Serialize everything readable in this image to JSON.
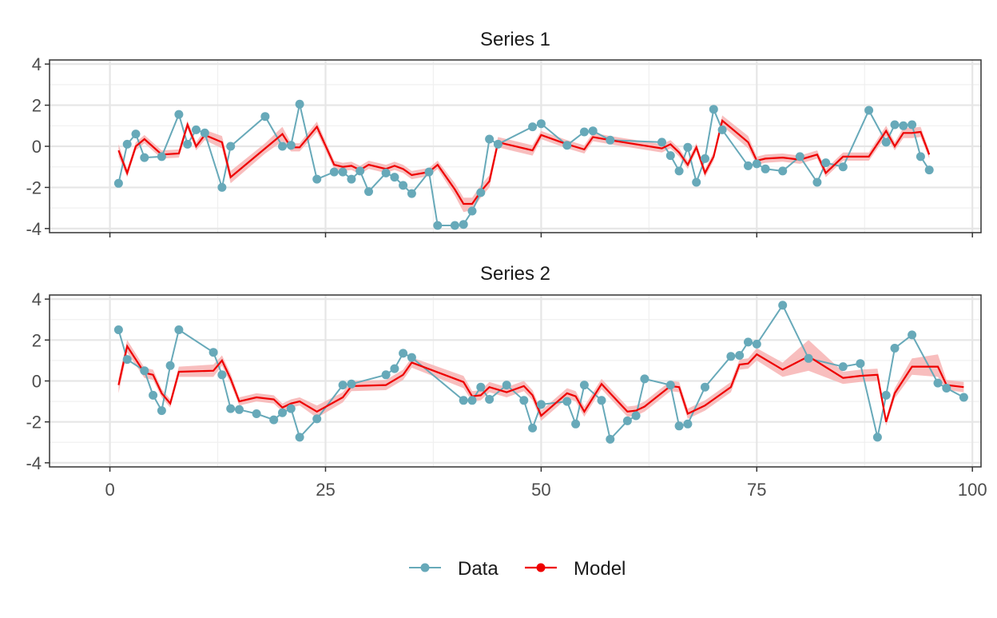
{
  "colors": {
    "data": "#67a9b9",
    "model": "#ee0000",
    "band": "#f7b3b3",
    "grid_major": "#e6e6e6",
    "grid_minor": "#f0f0f0",
    "panel_border": "#333333"
  },
  "chart_data": {
    "type": "line",
    "x_range": [
      -7,
      101
    ],
    "x_ticks": [
      0,
      25,
      50,
      75,
      100
    ],
    "x_tick_labels": [
      "0",
      "25",
      "50",
      "75",
      "100"
    ],
    "y_range": [
      -4.2,
      4.2
    ],
    "y_ticks": [
      -4,
      -2,
      0,
      2,
      4
    ],
    "y_tick_labels": [
      "-4",
      "-2",
      "0",
      "2",
      "4"
    ],
    "grid": true,
    "legend_position": "bottom",
    "legend": [
      "Data",
      "Model"
    ],
    "panels": [
      {
        "title": "Series 1",
        "data": [
          [
            1,
            -1.8
          ],
          [
            2,
            0.1
          ],
          [
            3,
            0.6
          ],
          [
            4,
            -0.55
          ],
          [
            6,
            -0.5
          ],
          [
            8,
            1.55
          ],
          [
            9,
            0.1
          ],
          [
            10,
            0.8
          ],
          [
            11,
            0.65
          ],
          [
            13,
            -2.0
          ],
          [
            14,
            0.0
          ],
          [
            18,
            1.45
          ],
          [
            20,
            0.0
          ],
          [
            21,
            0.05
          ],
          [
            22,
            2.05
          ],
          [
            24,
            -1.6
          ],
          [
            26,
            -1.25
          ],
          [
            27,
            -1.25
          ],
          [
            28,
            -1.6
          ],
          [
            29,
            -1.2
          ],
          [
            30,
            -2.2
          ],
          [
            32,
            -1.3
          ],
          [
            33,
            -1.5
          ],
          [
            34,
            -1.9
          ],
          [
            35,
            -2.3
          ],
          [
            37,
            -1.25
          ],
          [
            38,
            -3.85
          ],
          [
            40,
            -3.85
          ],
          [
            41,
            -3.8
          ],
          [
            42,
            -3.15
          ],
          [
            43,
            -2.25
          ],
          [
            44,
            0.35
          ],
          [
            45,
            0.1
          ],
          [
            49,
            0.95
          ],
          [
            50,
            1.1
          ],
          [
            53,
            0.05
          ],
          [
            55,
            0.7
          ],
          [
            56,
            0.75
          ],
          [
            58,
            0.3
          ],
          [
            64,
            0.2
          ],
          [
            65,
            -0.45
          ],
          [
            66,
            -1.2
          ],
          [
            67,
            -0.05
          ],
          [
            68,
            -1.75
          ],
          [
            69,
            -0.6
          ],
          [
            70,
            1.8
          ],
          [
            71,
            0.8
          ],
          [
            74,
            -0.95
          ],
          [
            75,
            -0.85
          ],
          [
            76,
            -1.1
          ],
          [
            78,
            -1.2
          ],
          [
            80,
            -0.5
          ],
          [
            82,
            -1.75
          ],
          [
            83,
            -0.8
          ],
          [
            85,
            -1.0
          ],
          [
            88,
            1.75
          ],
          [
            90,
            0.2
          ],
          [
            91,
            1.05
          ],
          [
            92,
            1.0
          ],
          [
            93,
            1.05
          ],
          [
            94,
            -0.5
          ],
          [
            95,
            -1.15
          ]
        ],
        "model": [
          [
            1,
            -0.2,
            -0.5,
            0.1
          ],
          [
            2,
            -1.3,
            -1.5,
            -1.1
          ],
          [
            3,
            0.0,
            -0.2,
            0.2
          ],
          [
            4,
            0.35,
            0.15,
            0.55
          ],
          [
            6,
            -0.4,
            -0.6,
            -0.2
          ],
          [
            8,
            -0.35,
            -0.55,
            -0.15
          ],
          [
            9,
            1.05,
            0.85,
            1.25
          ],
          [
            10,
            0.0,
            -0.2,
            0.2
          ],
          [
            11,
            0.55,
            0.3,
            0.8
          ],
          [
            13,
            0.2,
            -0.1,
            0.5
          ],
          [
            14,
            -1.5,
            -1.8,
            -1.2
          ],
          [
            18,
            -0.1,
            -0.35,
            0.15
          ],
          [
            20,
            0.6,
            0.25,
            0.95
          ],
          [
            21,
            -0.05,
            -0.25,
            0.15
          ],
          [
            22,
            -0.05,
            -0.25,
            0.15
          ],
          [
            24,
            0.95,
            0.7,
            1.2
          ],
          [
            26,
            -0.9,
            -1.1,
            -0.7
          ],
          [
            27,
            -1.0,
            -1.2,
            -0.8
          ],
          [
            28,
            -0.95,
            -1.15,
            -0.75
          ],
          [
            29,
            -1.15,
            -1.35,
            -0.95
          ],
          [
            30,
            -0.9,
            -1.1,
            -0.7
          ],
          [
            32,
            -1.1,
            -1.3,
            -0.9
          ],
          [
            33,
            -0.95,
            -1.15,
            -0.75
          ],
          [
            34,
            -1.1,
            -1.3,
            -0.9
          ],
          [
            35,
            -1.4,
            -1.6,
            -1.2
          ],
          [
            37,
            -1.25,
            -1.45,
            -1.05
          ],
          [
            38,
            -0.9,
            -1.1,
            -0.7
          ],
          [
            40,
            -2.1,
            -2.4,
            -1.8
          ],
          [
            41,
            -2.8,
            -3.2,
            -2.5
          ],
          [
            42,
            -2.8,
            -3.1,
            -2.5
          ],
          [
            43,
            -2.2,
            -2.5,
            -1.9
          ],
          [
            44,
            -1.7,
            -2.0,
            -1.4
          ],
          [
            45,
            0.2,
            -0.05,
            0.45
          ],
          [
            49,
            -0.2,
            -0.45,
            0.05
          ],
          [
            50,
            0.55,
            0.35,
            0.75
          ],
          [
            53,
            0.1,
            -0.1,
            0.3
          ],
          [
            55,
            -0.15,
            -0.35,
            0.05
          ],
          [
            56,
            0.45,
            0.25,
            0.65
          ],
          [
            58,
            0.3,
            0.1,
            0.5
          ],
          [
            64,
            -0.1,
            -0.3,
            0.1
          ],
          [
            65,
            0.1,
            -0.1,
            0.3
          ],
          [
            66,
            -0.3,
            -0.5,
            -0.1
          ],
          [
            67,
            -0.9,
            -1.1,
            -0.7
          ],
          [
            68,
            -0.05,
            -0.25,
            0.15
          ],
          [
            69,
            -1.3,
            -1.5,
            -1.1
          ],
          [
            70,
            -0.5,
            -0.7,
            -0.3
          ],
          [
            71,
            1.25,
            1.0,
            1.5
          ],
          [
            74,
            0.2,
            -0.1,
            0.5
          ],
          [
            75,
            -0.7,
            -0.9,
            -0.5
          ],
          [
            76,
            -0.6,
            -0.8,
            -0.4
          ],
          [
            78,
            -0.55,
            -0.75,
            -0.35
          ],
          [
            80,
            -0.65,
            -0.85,
            -0.45
          ],
          [
            82,
            -0.4,
            -0.6,
            -0.2
          ],
          [
            83,
            -1.3,
            -1.5,
            -1.1
          ],
          [
            85,
            -0.5,
            -0.7,
            -0.3
          ],
          [
            88,
            -0.5,
            -0.7,
            -0.3
          ],
          [
            90,
            0.75,
            0.5,
            1.0
          ],
          [
            91,
            0.0,
            -0.2,
            0.2
          ],
          [
            92,
            0.65,
            0.4,
            0.9
          ],
          [
            93,
            0.65,
            0.4,
            0.9
          ],
          [
            94,
            0.7,
            0.45,
            0.95
          ],
          [
            95,
            -0.4,
            -0.6,
            -0.2
          ]
        ]
      },
      {
        "title": "Series 2",
        "data": [
          [
            1,
            2.5
          ],
          [
            2,
            1.05
          ],
          [
            4,
            0.5
          ],
          [
            5,
            -0.7
          ],
          [
            6,
            -1.45
          ],
          [
            7,
            0.75
          ],
          [
            8,
            2.5
          ],
          [
            12,
            1.4
          ],
          [
            13,
            0.3
          ],
          [
            14,
            -1.35
          ],
          [
            15,
            -1.4
          ],
          [
            17,
            -1.6
          ],
          [
            19,
            -1.9
          ],
          [
            20,
            -1.55
          ],
          [
            21,
            -1.35
          ],
          [
            22,
            -2.75
          ],
          [
            24,
            -1.85
          ],
          [
            27,
            -0.2
          ],
          [
            28,
            -0.15
          ],
          [
            32,
            0.3
          ],
          [
            33,
            0.6
          ],
          [
            34,
            1.35
          ],
          [
            35,
            1.15
          ],
          [
            41,
            -0.95
          ],
          [
            42,
            -0.95
          ],
          [
            43,
            -0.3
          ],
          [
            44,
            -0.9
          ],
          [
            46,
            -0.2
          ],
          [
            48,
            -0.95
          ],
          [
            49,
            -2.3
          ],
          [
            50,
            -1.15
          ],
          [
            53,
            -1.0
          ],
          [
            54,
            -2.1
          ],
          [
            55,
            -0.2
          ],
          [
            57,
            -0.95
          ],
          [
            58,
            -2.85
          ],
          [
            60,
            -1.95
          ],
          [
            61,
            -1.7
          ],
          [
            62,
            0.1
          ],
          [
            65,
            -0.2
          ],
          [
            66,
            -2.2
          ],
          [
            67,
            -2.1
          ],
          [
            69,
            -0.3
          ],
          [
            72,
            1.2
          ],
          [
            73,
            1.25
          ],
          [
            74,
            1.9
          ],
          [
            75,
            1.8
          ],
          [
            78,
            3.7
          ],
          [
            81,
            1.1
          ],
          [
            85,
            0.7
          ],
          [
            87,
            0.85
          ],
          [
            89,
            -2.75
          ],
          [
            90,
            -0.7
          ],
          [
            91,
            1.6
          ],
          [
            93,
            2.25
          ],
          [
            96,
            -0.1
          ],
          [
            97,
            -0.35
          ],
          [
            99,
            -0.8
          ]
        ],
        "model": [
          [
            1,
            -0.2,
            -0.6,
            0.1
          ],
          [
            2,
            1.7,
            1.4,
            2.0
          ],
          [
            4,
            0.4,
            0.15,
            0.65
          ],
          [
            5,
            0.3,
            0.05,
            0.55
          ],
          [
            6,
            -0.6,
            -0.8,
            -0.4
          ],
          [
            7,
            -1.1,
            -1.3,
            -0.9
          ],
          [
            8,
            0.45,
            0.2,
            0.7
          ],
          [
            12,
            0.5,
            0.2,
            0.8
          ],
          [
            13,
            1.0,
            0.75,
            1.25
          ],
          [
            14,
            0.1,
            -0.15,
            0.35
          ],
          [
            15,
            -1.0,
            -1.2,
            -0.8
          ],
          [
            17,
            -0.8,
            -1.0,
            -0.6
          ],
          [
            19,
            -0.9,
            -1.1,
            -0.7
          ],
          [
            20,
            -1.3,
            -1.5,
            -1.1
          ],
          [
            21,
            -1.1,
            -1.3,
            -0.9
          ],
          [
            22,
            -1.0,
            -1.2,
            -0.8
          ],
          [
            24,
            -1.5,
            -1.8,
            -1.2
          ],
          [
            27,
            -0.8,
            -1.05,
            -0.55
          ],
          [
            28,
            -0.25,
            -0.5,
            0.0
          ],
          [
            32,
            -0.2,
            -0.45,
            0.05
          ],
          [
            33,
            0.05,
            -0.2,
            0.3
          ],
          [
            34,
            0.3,
            0.05,
            0.55
          ],
          [
            35,
            0.9,
            0.65,
            1.15
          ],
          [
            41,
            -0.05,
            -0.35,
            0.25
          ],
          [
            42,
            -0.75,
            -1.0,
            -0.5
          ],
          [
            43,
            -0.7,
            -0.95,
            -0.45
          ],
          [
            44,
            -0.3,
            -0.55,
            -0.05
          ],
          [
            46,
            -0.55,
            -0.8,
            -0.3
          ],
          [
            48,
            -0.25,
            -0.5,
            0.0
          ],
          [
            49,
            -0.7,
            -0.95,
            -0.45
          ],
          [
            50,
            -1.7,
            -1.95,
            -1.45
          ],
          [
            53,
            -0.6,
            -0.85,
            -0.35
          ],
          [
            54,
            -0.75,
            -1.0,
            -0.5
          ],
          [
            55,
            -1.5,
            -1.75,
            -1.25
          ],
          [
            57,
            -0.15,
            -0.4,
            0.1
          ],
          [
            58,
            -0.6,
            -0.85,
            -0.35
          ],
          [
            60,
            -1.5,
            -1.75,
            -1.25
          ],
          [
            61,
            -1.45,
            -1.7,
            -1.2
          ],
          [
            62,
            -1.25,
            -1.5,
            -1.0
          ],
          [
            65,
            -0.25,
            -0.5,
            0.0
          ],
          [
            66,
            -0.3,
            -0.55,
            -0.05
          ],
          [
            67,
            -1.6,
            -1.85,
            -1.35
          ],
          [
            69,
            -1.2,
            -1.45,
            -0.95
          ],
          [
            72,
            -0.3,
            -0.55,
            -0.05
          ],
          [
            73,
            0.8,
            0.55,
            1.05
          ],
          [
            74,
            0.85,
            0.6,
            1.1
          ],
          [
            75,
            1.3,
            1.0,
            1.6
          ],
          [
            78,
            0.55,
            0.2,
            0.9
          ],
          [
            81,
            1.2,
            0.5,
            2.0
          ],
          [
            85,
            0.15,
            -0.15,
            0.45
          ],
          [
            87,
            0.25,
            -0.05,
            0.55
          ],
          [
            89,
            0.3,
            0.0,
            0.6
          ],
          [
            90,
            -2.0,
            -2.2,
            -1.8
          ],
          [
            91,
            -0.6,
            -0.85,
            -0.35
          ],
          [
            93,
            0.7,
            0.3,
            1.1
          ],
          [
            96,
            0.7,
            0.2,
            1.3
          ],
          [
            97,
            -0.2,
            -0.45,
            0.05
          ],
          [
            99,
            -0.3,
            -0.55,
            -0.05
          ]
        ]
      }
    ]
  }
}
